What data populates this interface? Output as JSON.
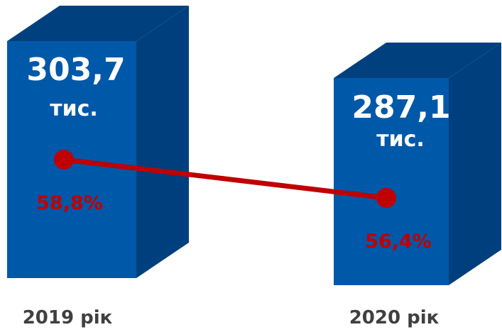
{
  "chart_data": {
    "type": "bar",
    "categories": [
      "2019 рік",
      "2020 рік"
    ],
    "series": [
      {
        "values": [
          303.7,
          287.1
        ],
        "labels": [
          "303,7",
          "287,1"
        ],
        "unit_label": "тис.",
        "color": "#0055aa"
      },
      {
        "type": "line",
        "values": [
          58.8,
          56.4
        ],
        "labels": [
          "58,8%",
          "56,4%"
        ],
        "color": "#c00000"
      }
    ],
    "colors": {
      "bar_front": "#0058a8",
      "bar_side": "#003f7e",
      "bar_top": "#00407f",
      "line": "#c00000"
    }
  }
}
